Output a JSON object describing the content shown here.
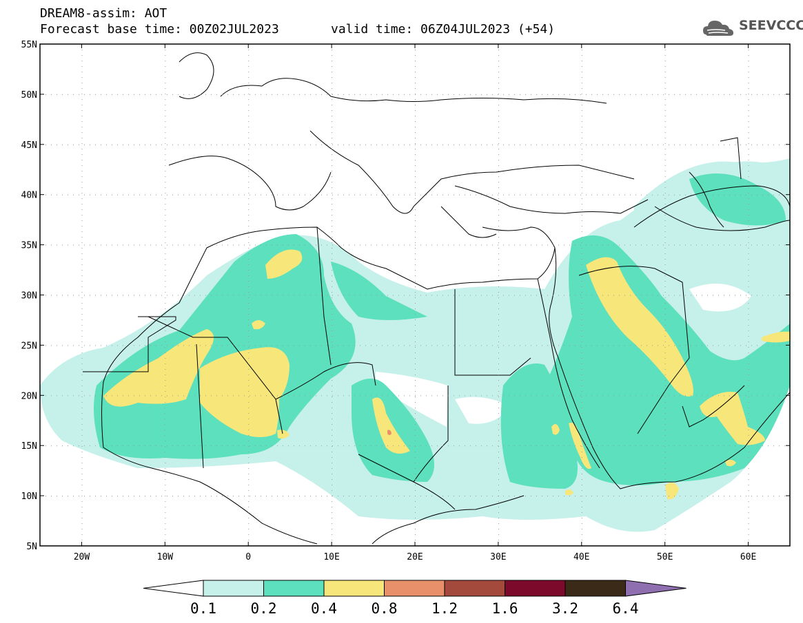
{
  "header": {
    "line1": "DREAM8-assim: AOT",
    "line2": "Forecast base time: 00Z02JUL2023",
    "valid": "valid time: 06Z04JUL2023 (+54)"
  },
  "logo": {
    "text": "SEEVCCC",
    "icon": "cloud-logo-icon",
    "color": "#555555"
  },
  "map": {
    "lat_labels": [
      "55N",
      "50N",
      "45N",
      "40N",
      "35N",
      "30N",
      "25N",
      "20N",
      "15N",
      "10N",
      "5N"
    ],
    "lon_labels": [
      "20W",
      "10W",
      "0",
      "10E",
      "20E",
      "30E",
      "40E",
      "50E",
      "60E"
    ],
    "lat_range": [
      5,
      55
    ],
    "lon_range": [
      -25,
      65
    ]
  },
  "colorbar": {
    "ticks": [
      "0.1",
      "0.2",
      "0.4",
      "0.8",
      "1.2",
      "1.6",
      "3.2",
      "6.4"
    ],
    "colors": [
      "#c6f0ea",
      "#5ce0bd",
      "#f7e67a",
      "#e8906a",
      "#a44a3c",
      "#7c0a2a",
      "#3c2a18",
      "#8f6fb0"
    ]
  }
}
